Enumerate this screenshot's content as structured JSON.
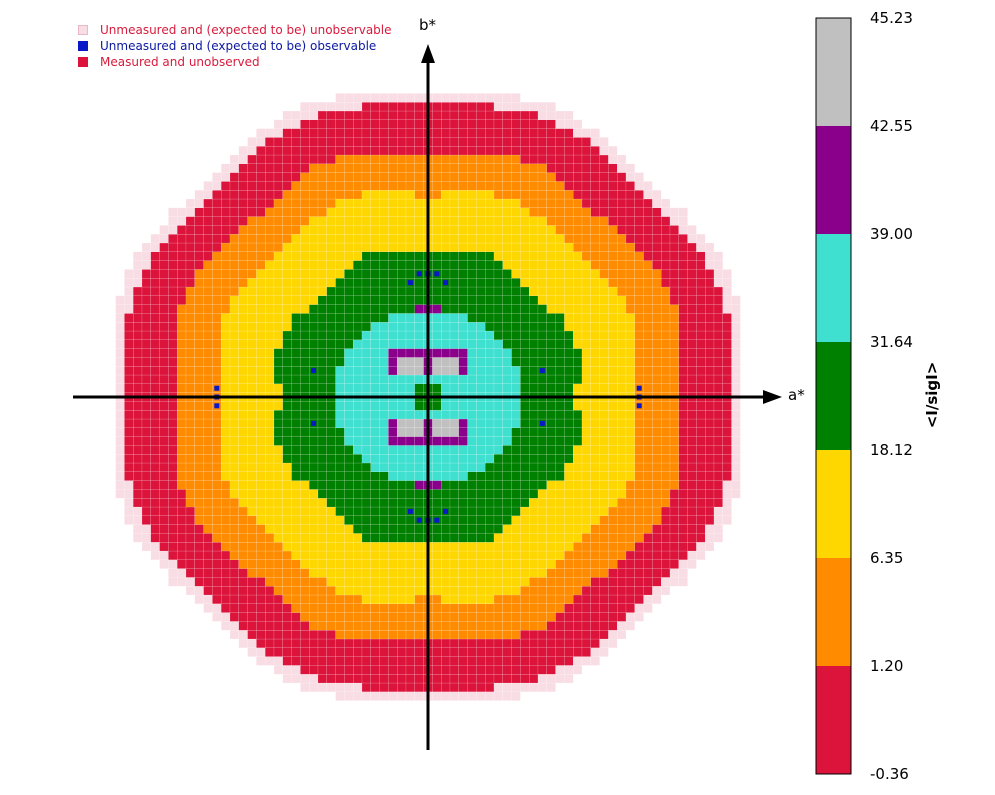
{
  "chart_data": {
    "type": "heatmap",
    "title": "",
    "xlabel": "a*",
    "ylabel": "b*",
    "grid_extent": [
      -40,
      40
    ],
    "legend": {
      "placement": "top-left",
      "entries": [
        {
          "label": "Unmeasured and (expected to be) unobservable",
          "color": "#f9dde4",
          "text_color": "#d81b3c"
        },
        {
          "label": "Unmeasured and (expected to be) observable",
          "color": "#0a18c8",
          "text_color": "#0a18a0"
        },
        {
          "label": "Measured and unobserved",
          "color": "#dc143c",
          "text_color": "#d81b3c"
        }
      ]
    },
    "colorbar": {
      "label": "<I/sigI>",
      "ticks": [
        "45.23",
        "42.55",
        "39.00",
        "31.64",
        "18.12",
        "6.35",
        "1.20",
        "-0.36"
      ],
      "bands": [
        {
          "from": "42.55",
          "to": "45.23",
          "color": "#c0c0c0"
        },
        {
          "from": "39.00",
          "to": "42.55",
          "color": "#8b008b"
        },
        {
          "from": "31.64",
          "to": "39.00",
          "color": "#40e0d0"
        },
        {
          "from": "18.12",
          "to": "31.64",
          "color": "#008000"
        },
        {
          "from": "6.35",
          "to": "18.12",
          "color": "#ffd700"
        },
        {
          "from": "1.20",
          "to": "6.35",
          "color": "#ff8c00"
        },
        {
          "from": "-0.36",
          "to": "1.20",
          "color": "#dc143c"
        }
      ]
    },
    "zones": [
      {
        "rmax": 10.5,
        "value_band": "31.64–39.00",
        "color": "#40e0d0"
      },
      {
        "rmax": 17.5,
        "value_band": "18.12–31.64",
        "color": "#008000"
      },
      {
        "rmax": 24.5,
        "value_band": "6.35–18.12",
        "color": "#ffd700"
      },
      {
        "rmax": 29.5,
        "value_band": "1.20–6.35",
        "color": "#ff8c00"
      },
      {
        "rmax": 35.0,
        "value_band": "-0.36–1.20",
        "color": "#dc143c"
      },
      {
        "rmax": 36.5,
        "value_band": "unmeasured unobservable",
        "color": "#f9dde4"
      }
    ],
    "highlights": [
      {
        "band": "39.00–42.55",
        "color": "#8b008b",
        "region": "upper and lower arcs near b* axis"
      },
      {
        "band": "42.55–45.23",
        "color": "#c0c0c0",
        "region": "small patches flanking b* axis"
      }
    ]
  }
}
